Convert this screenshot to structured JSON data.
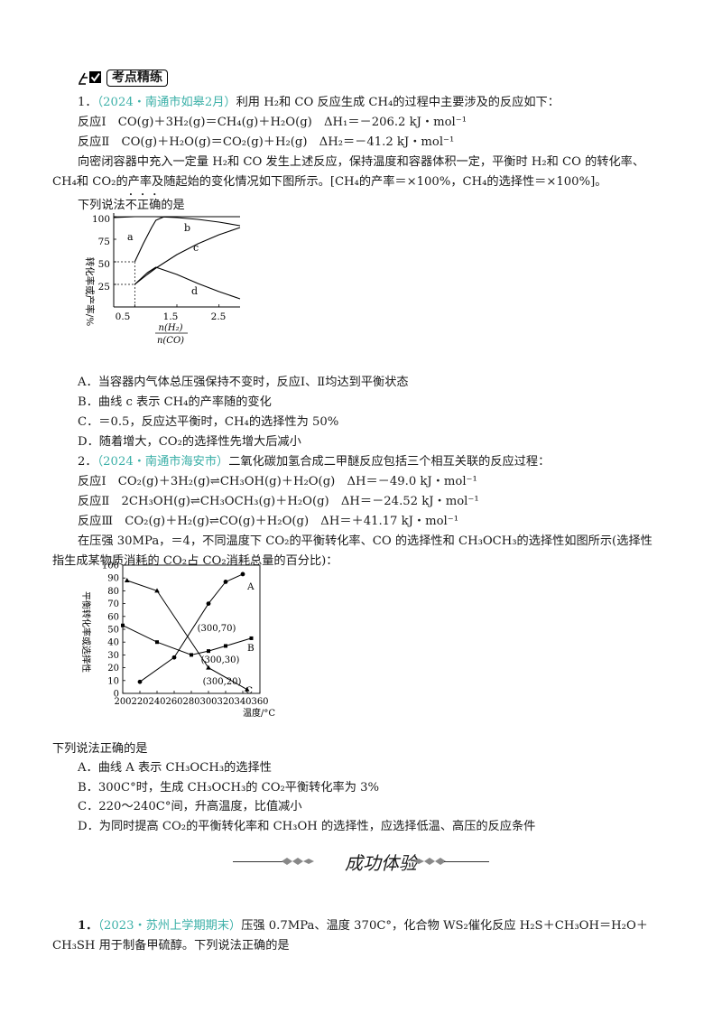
{
  "header": {
    "label": "考点精练"
  },
  "q1": {
    "line1_num": "1．",
    "line1_src": "（2024・南通市如皋2月）",
    "line1_text": "利用 H₂和 CO 反应生成 CH₄的过程中主要涉及的反应如下：",
    "r1": "反应Ⅰ　CO(g)＋3H₂(g)＝CH₄(g)＋H₂O(g)　ΔH₁＝－206.2 kJ・mol⁻¹",
    "r2": "反应Ⅱ　CO(g)＋H₂O(g)＝CO₂(g)＋H₂(g)　ΔH₂＝－41.2 kJ・mol⁻¹",
    "p1": "向密闭容器中充入一定量 H₂和 CO 发生上述反应，保持温度和容器体积一定，平衡时 H₂和 CO 的转化率、",
    "p2": "CH₄和 CO₂的产率及随起始的变化情况如下图所示。[CH₄的产率＝×100%，CH₄的选择性＝×100%]。",
    "ask_a": "下列说法",
    "ask_b": "不正确",
    "ask_c": "的是",
    "opts": [
      "A．当容器内气体总压强保持不变时，反应Ⅰ、Ⅱ均达到平衡状态",
      "B．曲线 c 表示 CH₄的产率随的变化",
      "C．＝0.5，反应达平衡时，CH₄的选择性为 50%",
      "D．随着增大，CO₂的选择性先增大后减小"
    ]
  },
  "chart1": {
    "ylabel": "转化率或产率/%",
    "ytick_labels": [
      "100",
      "75",
      "50",
      "25"
    ],
    "xtick_labels": [
      "0.5",
      "1.5",
      "2.5"
    ],
    "x_num": "n(H₂)",
    "x_den": "n(CO)",
    "curve_labels": [
      "a",
      "b",
      "c",
      "d"
    ]
  },
  "chart_data": [
    {
      "type": "line",
      "ylabel": "转化率或产率/%",
      "xlabel": "n(H₂)/n(CO)",
      "xlim": [
        0,
        3
      ],
      "ylim": [
        0,
        100
      ],
      "xticks": [
        0.5,
        1.5,
        2.5
      ],
      "yticks": [
        25,
        50,
        75,
        100
      ],
      "series": [
        {
          "name": "a",
          "x": [
            0.5,
            0.7,
            0.9,
            1.0,
            1.2,
            1.5,
            2.0,
            2.5,
            3.0
          ],
          "y": [
            50,
            70,
            88,
            96,
            100,
            100,
            100,
            100,
            100
          ]
        },
        {
          "name": "b",
          "x": [
            0.0,
            0.5,
            1.0,
            1.5,
            2.0,
            2.5,
            3.0
          ],
          "y": [
            99,
            100,
            100,
            99,
            97,
            94,
            90
          ]
        },
        {
          "name": "c",
          "x": [
            0.5,
            0.8,
            1.0,
            1.5,
            2.0,
            2.5,
            3.0
          ],
          "y": [
            25,
            36,
            43,
            58,
            70,
            80,
            88
          ]
        },
        {
          "name": "d",
          "x": [
            0.5,
            0.8,
            1.0,
            1.5,
            2.0,
            2.5,
            3.0
          ],
          "y": [
            25,
            38,
            44,
            36,
            26,
            17,
            9
          ]
        }
      ]
    },
    {
      "type": "line",
      "ylabel": "平衡转化率或选择性",
      "xlabel": "温度/°C",
      "xlim": [
        200,
        360
      ],
      "ylim": [
        0,
        100
      ],
      "xticks": [
        200,
        220,
        240,
        260,
        280,
        300,
        320,
        340,
        360
      ],
      "yticks": [
        0,
        10,
        20,
        30,
        40,
        50,
        60,
        70,
        80,
        90,
        100
      ],
      "series": [
        {
          "name": "A",
          "x": [
            220,
            260,
            300,
            320,
            340
          ],
          "y": [
            9,
            28,
            70,
            87,
            93
          ]
        },
        {
          "name": "B",
          "x": [
            200,
            240,
            280,
            300,
            320,
            350
          ],
          "y": [
            53,
            40,
            30,
            33,
            37,
            43
          ]
        },
        {
          "name": "C",
          "x": [
            205,
            240,
            300,
            345
          ],
          "y": [
            88,
            80,
            20,
            3
          ]
        }
      ],
      "annotations": [
        "(300,70)",
        "(300,30)",
        "(300,20)"
      ]
    }
  ],
  "q2": {
    "line1_num": "2．",
    "line1_src": "（2024・南通市海安市）",
    "line1_text": "二氧化碳加氢合成二甲醚反应包括三个相互关联的反应过程：",
    "r1": "反应Ⅰ　CO₂(g)＋3H₂(g)⇌CH₃OH(g)＋H₂O(g)　ΔH＝－49.0 kJ・mol⁻¹",
    "r2": "反应Ⅱ　2CH₃OH(g)⇌CH₃OCH₃(g)＋H₂O(g)　ΔH＝－24.52 kJ・mol⁻¹",
    "r3": "反应Ⅲ　CO₂(g)＋H₂(g)⇌CO(g)＋H₂O(g)　ΔH＝＋41.17 kJ・mol⁻¹",
    "p1": "在压强 30MPa，＝4，不同温度下 CO₂的平衡转化率、CO 的选择性和 CH₃OCH₃的选择性如图所示(选择性",
    "p2": "指生成某物质消耗的 CO₂占 CO₂消耗总量的百分比)：",
    "ask": "下列说法正确的是",
    "opts": [
      "A．曲线 A 表示 CH₃OCH₃的选择性",
      "B．300C°时，生成 CH₃OCH₃的 CO₂平衡转化率为 3%",
      "C．220～240C°间，升高温度，比值减小",
      "D．为同时提高 CO₂的平衡转化率和 CH₃OH 的选择性，应选择低温、高压的反应条件"
    ]
  },
  "chart2": {
    "ylabel": "平衡转化率或选择性",
    "xlabel": "温度/°C",
    "ytick_labels": [
      "100",
      "90",
      "80",
      "70",
      "60",
      "50",
      "40",
      "30",
      "20",
      "10",
      "0"
    ],
    "xtick_labels": [
      "200",
      "220",
      "240",
      "260",
      "280",
      "300",
      "320",
      "340",
      "360"
    ],
    "point_labels": [
      "(300,70)",
      "(300,30)",
      "(300,20)"
    ],
    "curve_labels": [
      "A",
      "B",
      "C"
    ]
  },
  "section": {
    "title": "成功体验"
  },
  "q3": {
    "num": "1．",
    "src": "（2023・苏州上学期期末）",
    "text1": "压强 0.7MPa、温度 370C°，化合物 WS₂催化反应 H₂S＋CH₃OH＝H₂O＋",
    "text2": "CH₃SH 用于制备甲硫醇。下列说法正确的是"
  }
}
